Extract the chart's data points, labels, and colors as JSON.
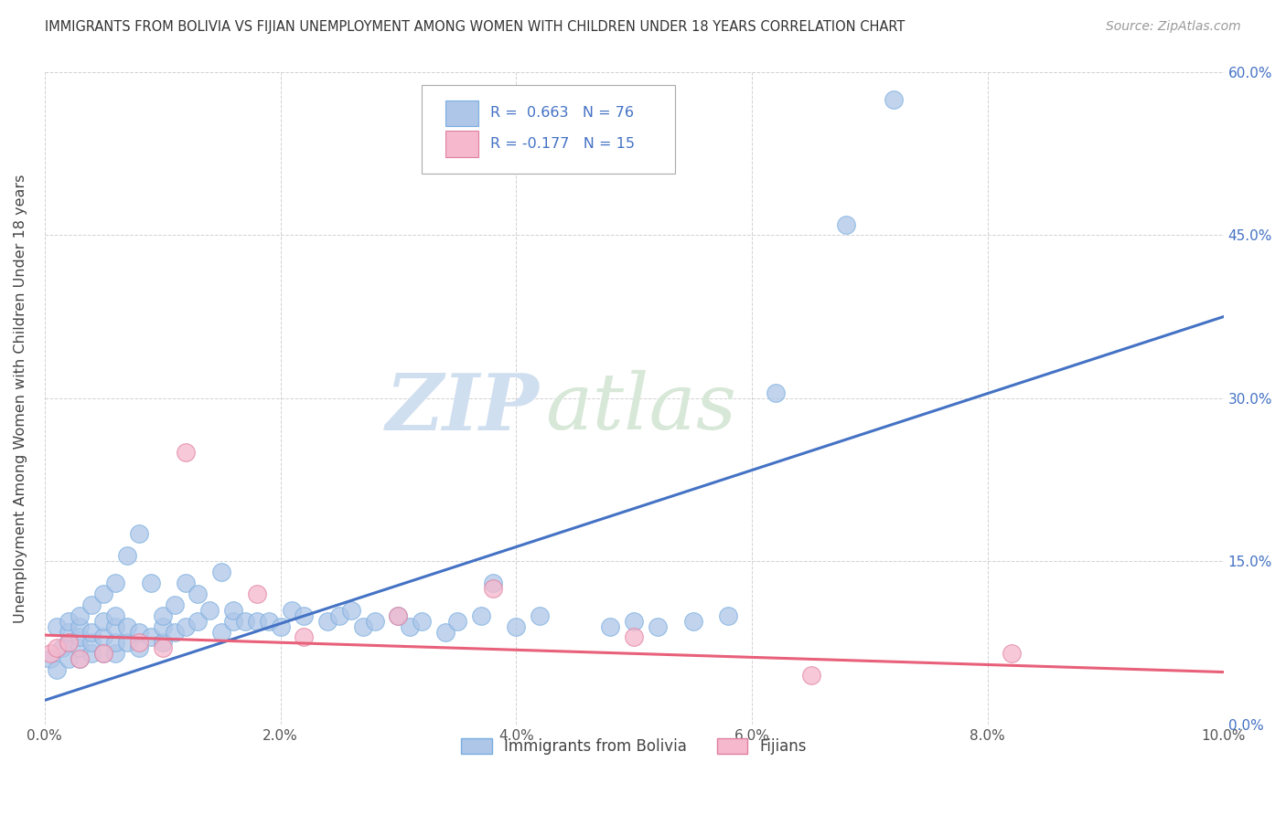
{
  "title": "IMMIGRANTS FROM BOLIVIA VS FIJIAN UNEMPLOYMENT AMONG WOMEN WITH CHILDREN UNDER 18 YEARS CORRELATION CHART",
  "source": "Source: ZipAtlas.com",
  "ylabel": "Unemployment Among Women with Children Under 18 years",
  "legend_label_1": "Immigrants from Bolivia",
  "legend_label_2": "Fijians",
  "r1": 0.663,
  "n1": 76,
  "r2": -0.177,
  "n2": 15,
  "color_blue": "#aec6e8",
  "color_pink": "#f5b8cc",
  "line_blue": "#4472c4",
  "line_pink": "#e8607a",
  "xlim": [
    0.0,
    0.1
  ],
  "ylim": [
    0.0,
    0.6
  ],
  "xticks": [
    0.0,
    0.02,
    0.04,
    0.06,
    0.08,
    0.1
  ],
  "yticks": [
    0.0,
    0.15,
    0.3,
    0.45,
    0.6
  ],
  "xtick_labels": [
    "0.0%",
    "2.0%",
    "4.0%",
    "6.0%",
    "8.0%",
    "10.0%"
  ],
  "ytick_labels_right": [
    "0.0%",
    "15.0%",
    "30.0%",
    "45.0%",
    "60.0%"
  ],
  "blue_line_x0": 0.0,
  "blue_line_y0": 0.022,
  "blue_line_x1": 0.1,
  "blue_line_y1": 0.375,
  "pink_line_x0": 0.0,
  "pink_line_y0": 0.082,
  "pink_line_x1": 0.1,
  "pink_line_y1": 0.048,
  "blue_scatter_x": [
    0.0005,
    0.001,
    0.001,
    0.0015,
    0.002,
    0.002,
    0.002,
    0.002,
    0.003,
    0.003,
    0.003,
    0.003,
    0.003,
    0.004,
    0.004,
    0.004,
    0.004,
    0.005,
    0.005,
    0.005,
    0.005,
    0.006,
    0.006,
    0.006,
    0.006,
    0.006,
    0.007,
    0.007,
    0.007,
    0.008,
    0.008,
    0.008,
    0.009,
    0.009,
    0.01,
    0.01,
    0.01,
    0.011,
    0.011,
    0.012,
    0.012,
    0.013,
    0.013,
    0.014,
    0.015,
    0.015,
    0.016,
    0.016,
    0.017,
    0.018,
    0.019,
    0.02,
    0.021,
    0.022,
    0.024,
    0.025,
    0.026,
    0.027,
    0.028,
    0.03,
    0.031,
    0.032,
    0.034,
    0.035,
    0.037,
    0.038,
    0.04,
    0.042,
    0.048,
    0.05,
    0.052,
    0.055,
    0.058,
    0.062,
    0.068,
    0.072
  ],
  "blue_scatter_y": [
    0.06,
    0.05,
    0.09,
    0.07,
    0.06,
    0.075,
    0.085,
    0.095,
    0.06,
    0.07,
    0.08,
    0.09,
    0.1,
    0.065,
    0.075,
    0.085,
    0.11,
    0.065,
    0.08,
    0.095,
    0.12,
    0.065,
    0.075,
    0.09,
    0.1,
    0.13,
    0.075,
    0.09,
    0.155,
    0.07,
    0.085,
    0.175,
    0.08,
    0.13,
    0.075,
    0.09,
    0.1,
    0.085,
    0.11,
    0.09,
    0.13,
    0.095,
    0.12,
    0.105,
    0.085,
    0.14,
    0.095,
    0.105,
    0.095,
    0.095,
    0.095,
    0.09,
    0.105,
    0.1,
    0.095,
    0.1,
    0.105,
    0.09,
    0.095,
    0.1,
    0.09,
    0.095,
    0.085,
    0.095,
    0.1,
    0.13,
    0.09,
    0.1,
    0.09,
    0.095,
    0.09,
    0.095,
    0.1,
    0.305,
    0.46,
    0.575
  ],
  "pink_scatter_x": [
    0.0005,
    0.001,
    0.002,
    0.003,
    0.005,
    0.008,
    0.01,
    0.012,
    0.018,
    0.022,
    0.03,
    0.038,
    0.05,
    0.065,
    0.082
  ],
  "pink_scatter_y": [
    0.065,
    0.07,
    0.075,
    0.06,
    0.065,
    0.075,
    0.07,
    0.25,
    0.12,
    0.08,
    0.1,
    0.125,
    0.08,
    0.045,
    0.065
  ],
  "watermark_zip": "ZIP",
  "watermark_atlas": "atlas",
  "background_color": "#ffffff",
  "grid_color": "#cccccc"
}
